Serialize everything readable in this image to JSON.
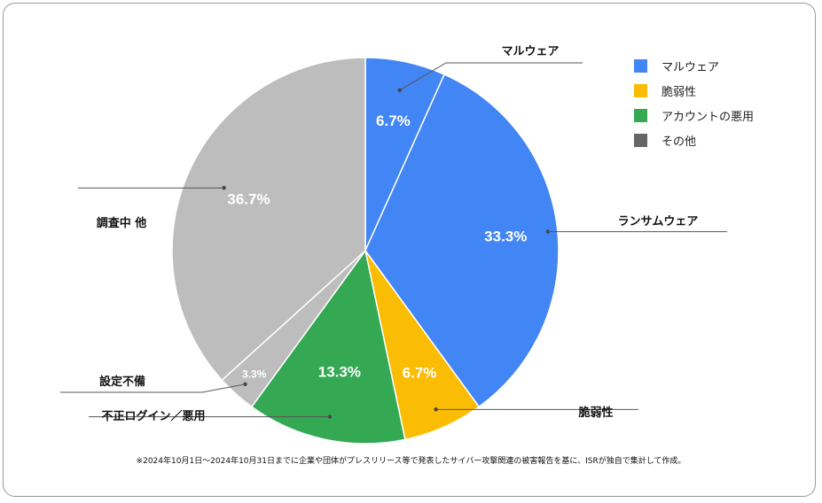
{
  "chart_data": {
    "type": "pie",
    "slices": [
      {
        "name": "マルウェア",
        "value": 6.7,
        "value_label": "6.7%",
        "color": "#4285f4",
        "callout": "マルウェア"
      },
      {
        "name": "ランサムウェア",
        "value": 33.3,
        "value_label": "33.3%",
        "color": "#4285f4",
        "callout": "ランサムウェア"
      },
      {
        "name": "脆弱性",
        "value": 6.7,
        "value_label": "6.7%",
        "color": "#fbbc04",
        "callout": "脆弱性"
      },
      {
        "name": "アカウントの悪用",
        "value": 13.3,
        "value_label": "13.3%",
        "color": "#34a853",
        "callout": "不正ログイン／悪用"
      },
      {
        "name": "設定不備",
        "value": 3.3,
        "value_label": "3.3%",
        "color": "#bdbdbd",
        "callout": "設定不備"
      },
      {
        "name": "調査中 他",
        "value": 36.7,
        "value_label": "36.7%",
        "color": "#bdbdbd",
        "callout": "調査中 他"
      }
    ],
    "legend": {
      "position": "top-right",
      "entries": [
        {
          "label": "マルウェア",
          "color": "#4285f4"
        },
        {
          "label": "脆弱性",
          "color": "#fbbc04"
        },
        {
          "label": "アカウントの悪用",
          "color": "#34a853"
        },
        {
          "label": "その他",
          "color": "#666666"
        }
      ]
    },
    "footnote": "※2024年10月1日〜2024年10月31日までに企業や団体がプレスリリース等で発表したサイバー攻撃関連の被害報告を基に、ISRが独自で集計して作成。"
  }
}
